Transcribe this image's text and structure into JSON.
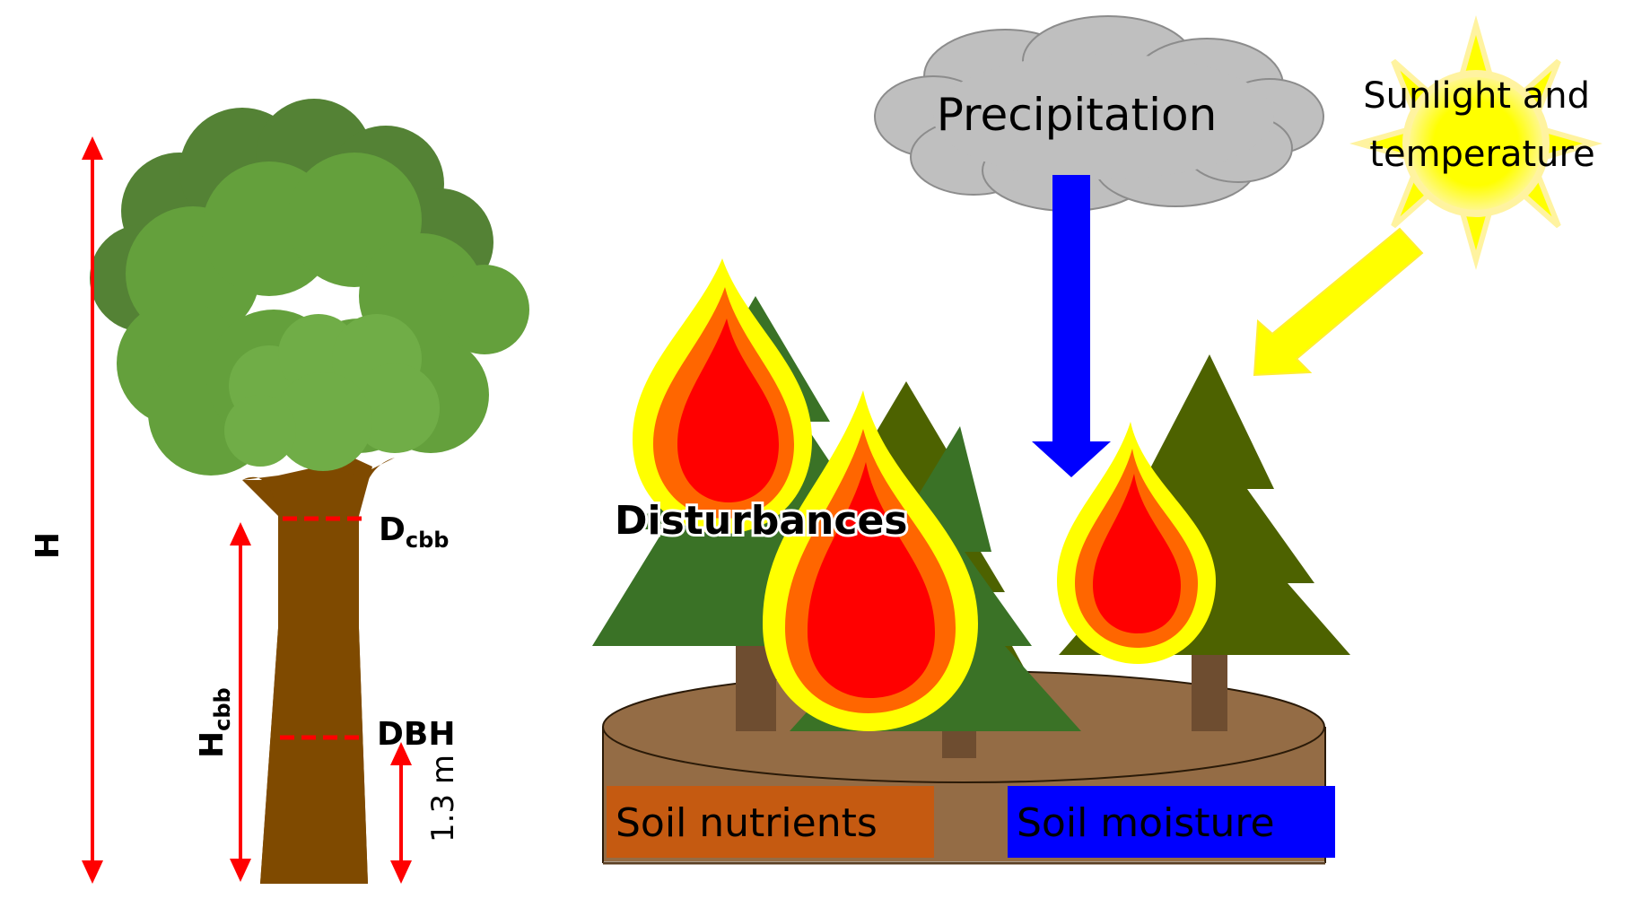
{
  "tree_metrics": {
    "height_label": "H",
    "crown_base_diameter_label_main": "D",
    "crown_base_diameter_label_sub": "cbb",
    "crown_base_height_label_main": "H",
    "crown_base_height_label_sub": "cbb",
    "dbh_label": "DBH",
    "dbh_height_label": "1.3 m"
  },
  "forest_factors": {
    "precipitation_label": "Precipitation",
    "sunlight_line1": "Sunlight and",
    "sunlight_line2": "temperature",
    "disturbances_label": "Disturbances",
    "soil_nutrients_label": "Soil nutrients",
    "soil_moisture_label": "Soil moisture"
  },
  "colors": {
    "measure_arrow": "#ff0000",
    "trunk": "#7f4a00",
    "precipitation_arrow": "#0000ff",
    "sunlight_arrow": "#ffff00",
    "soil": "#946c45",
    "soil_nutrients_box": "#c55a11",
    "soil_moisture_box": "#0000ff",
    "cloud": "#bfbfbf"
  }
}
